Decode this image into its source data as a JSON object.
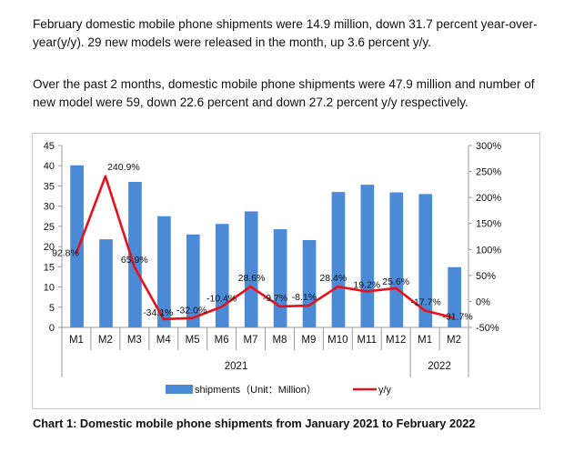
{
  "paragraphs": {
    "p1": "February domestic mobile phone shipments were 14.9 million, down 31.7 percent year-over-year(y/y). 29 new models were released in the month, up 3.6 percent y/y.",
    "p2": "Over the past 2 months, domestic mobile phone shipments were 47.9 million and number of new model were 59, down 22.6 percent and down 27.2 percent y/y respectively."
  },
  "caption": "Chart 1: Domestic mobile phone shipments from January 2021 to February 2022",
  "colors": {
    "bar": "#4a8ad6",
    "line": "#e8101a",
    "grid": "#9a9a9a"
  },
  "chart_data": {
    "type": "bar",
    "categories": [
      "M1",
      "M2",
      "M3",
      "M4",
      "M5",
      "M6",
      "M7",
      "M8",
      "M9",
      "M10",
      "M11",
      "M12",
      "M1",
      "M2"
    ],
    "year_groups": [
      {
        "label": "2021",
        "from": 0,
        "to": 11
      },
      {
        "label": "2022",
        "from": 12,
        "to": 13
      }
    ],
    "series": [
      {
        "name": "shipments（Unit：Million）",
        "type": "bar",
        "axis": "left",
        "values": [
          40.1,
          21.8,
          36.0,
          27.5,
          23.0,
          25.6,
          28.7,
          24.3,
          21.6,
          33.5,
          35.3,
          33.4,
          33.0,
          14.9
        ]
      },
      {
        "name": "y/y",
        "type": "line",
        "axis": "right",
        "values": [
          92.8,
          240.9,
          65.9,
          -34.1,
          -32.0,
          -10.4,
          28.6,
          -9.7,
          -8.1,
          28.4,
          19.2,
          25.6,
          -17.7,
          -31.7
        ],
        "labels": [
          "92.8%",
          "240.9%",
          "65.9%",
          "-34.1%",
          "-32.0%",
          "-10.4%",
          "28.6%",
          "-9.7%",
          "-8.1%",
          "28.4%",
          "19.2%",
          "25.6%",
          "-17.7%",
          "-31.7%"
        ]
      }
    ],
    "ylim": [
      0,
      45
    ],
    "yticks": [
      "0",
      "5",
      "10",
      "15",
      "20",
      "25",
      "30",
      "35",
      "40",
      "45"
    ],
    "y2lim": [
      -50,
      300
    ],
    "y2ticks": [
      "-50%",
      "0%",
      "50%",
      "100%",
      "150%",
      "200%",
      "250%",
      "300%"
    ],
    "legend": {
      "position": "bottom",
      "bar_label": "shipments（Unit：Million）",
      "line_label": "y/y"
    }
  }
}
